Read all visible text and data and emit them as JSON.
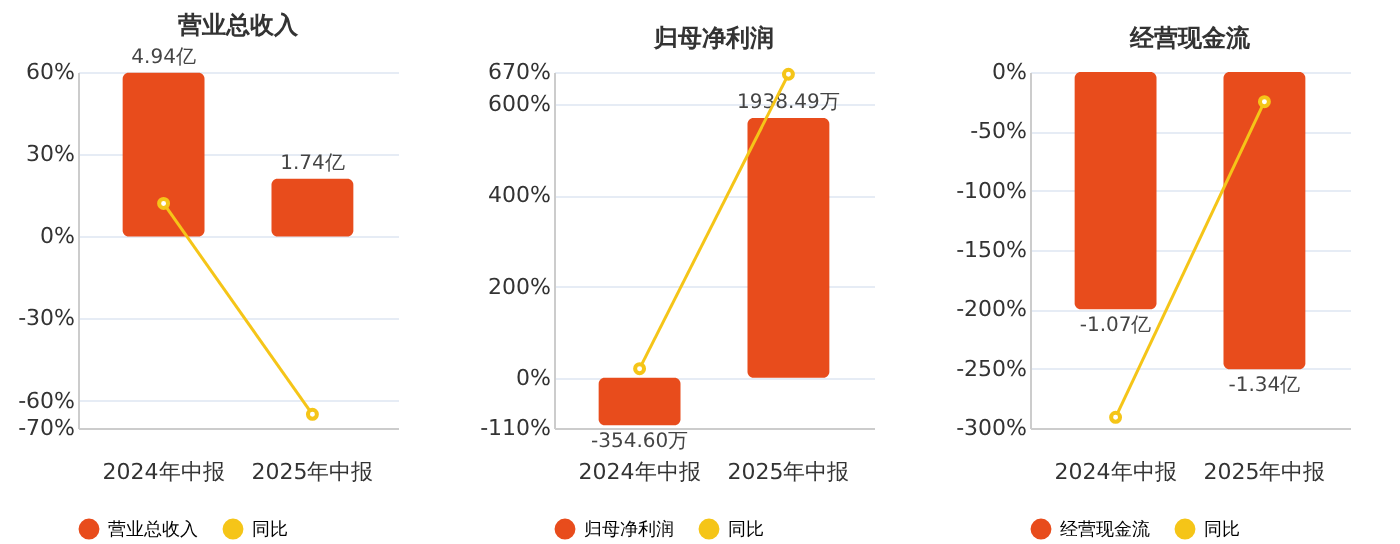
{
  "chart_data": [
    {
      "type": "bar",
      "title": "营业总收入",
      "categories": [
        "2024年中报",
        "2025年中报"
      ],
      "ylim": [
        -70,
        60
      ],
      "yticks": [
        {
          "value": 60,
          "label": "60%"
        },
        {
          "value": 30,
          "label": "30%"
        },
        {
          "value": 0,
          "label": "0%"
        },
        {
          "value": -30,
          "label": "-30%"
        },
        {
          "value": -60,
          "label": "-60%"
        },
        {
          "value": -70,
          "label": "-70%"
        }
      ],
      "y2lim": [
        -5.78,
        4.96
      ],
      "grid": "y",
      "legend": "bottom",
      "series": [
        {
          "name": "营业总收入",
          "axis": "y2",
          "color": "#e84c1c",
          "values": [
            4.94,
            1.74
          ],
          "value_labels": [
            "4.94亿",
            "1.74亿"
          ]
        },
        {
          "name": "同比",
          "type": "line",
          "color": "#f5c518",
          "marker": "circle",
          "values": [
            12,
            -65
          ]
        }
      ]
    },
    {
      "type": "bar",
      "title": "归母净利润",
      "categories": [
        "2024年中报",
        "2025年中报"
      ],
      "ylim": [
        -110,
        670
      ],
      "yticks": [
        {
          "value": 670,
          "label": "670%"
        },
        {
          "value": 600,
          "label": "600%"
        },
        {
          "value": 400,
          "label": "400%"
        },
        {
          "value": 200,
          "label": "200%"
        },
        {
          "value": 0,
          "label": "0%"
        },
        {
          "value": -110,
          "label": "-110%"
        }
      ],
      "y2lim": [
        -374.8,
        2282.7
      ],
      "grid": "y",
      "legend": "bottom",
      "series": [
        {
          "name": "归母净利润",
          "axis": "y2",
          "color": "#e84c1c",
          "values": [
            -354.6,
            1938.49
          ],
          "value_labels": [
            "-354.60万",
            "1938.49万"
          ]
        },
        {
          "name": "同比",
          "type": "line",
          "color": "#f5c518",
          "marker": "circle",
          "values": [
            20,
            665
          ]
        }
      ]
    },
    {
      "type": "bar",
      "title": "经营现金流",
      "categories": [
        "2024年中报",
        "2025年中报"
      ],
      "ylim": [
        -300,
        0
      ],
      "yticks": [
        {
          "value": 0,
          "label": "0%"
        },
        {
          "value": -50,
          "label": "-50%"
        },
        {
          "value": -100,
          "label": "-100%"
        },
        {
          "value": -150,
          "label": "-150%"
        },
        {
          "value": -200,
          "label": "-200%"
        },
        {
          "value": -250,
          "label": "-250%"
        },
        {
          "value": -300,
          "label": "-300%"
        }
      ],
      "y2lim": [
        -1.605,
        0
      ],
      "grid": "y",
      "legend": "bottom",
      "series": [
        {
          "name": "经营现金流",
          "axis": "y2",
          "color": "#e84c1c",
          "values": [
            -1.07,
            -1.34
          ],
          "value_labels": [
            "-1.07亿",
            "-1.34亿"
          ]
        },
        {
          "name": "同比",
          "type": "line",
          "color": "#f5c518",
          "marker": "circle",
          "values": [
            -291,
            -25
          ]
        }
      ]
    }
  ]
}
